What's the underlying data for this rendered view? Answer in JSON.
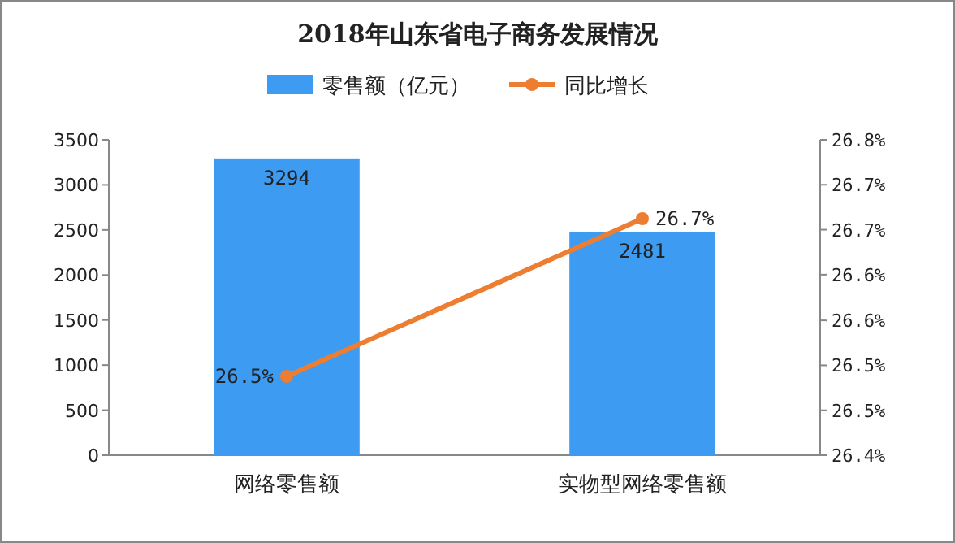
{
  "chart_data": {
    "type": "bar",
    "title": "2018年山东省电子商务发展情况",
    "categories": [
      "网络零售额",
      "实物型网络零售额"
    ],
    "series": [
      {
        "name": "零售额（亿元）",
        "color": "#3d9cf2",
        "values": [
          3294,
          2481
        ],
        "value_labels": [
          "3294",
          "2481"
        ]
      },
      {
        "name": "同比增长",
        "type": "line",
        "axis": "y2",
        "color": "#ed7d31",
        "values": [
          26.5,
          26.7
        ],
        "value_labels": [
          "26.5%",
          "26.7%"
        ],
        "marker": "circle"
      }
    ],
    "ylim": [
      0,
      3500
    ],
    "yticks": [
      0,
      500,
      1000,
      1500,
      2000,
      2500,
      3000,
      3500
    ],
    "y2lim": [
      26.4,
      26.8
    ],
    "y2ticks": [
      {
        "value": 26.4,
        "label": "26.4%"
      },
      {
        "value": 26.457,
        "label": "26.5%"
      },
      {
        "value": 26.514,
        "label": "26.5%"
      },
      {
        "value": 26.571,
        "label": "26.6%"
      },
      {
        "value": 26.629,
        "label": "26.6%"
      },
      {
        "value": 26.686,
        "label": "26.7%"
      },
      {
        "value": 26.743,
        "label": "26.7%"
      },
      {
        "value": 26.8,
        "label": "26.8%"
      }
    ],
    "legend": "top",
    "grid": false
  }
}
